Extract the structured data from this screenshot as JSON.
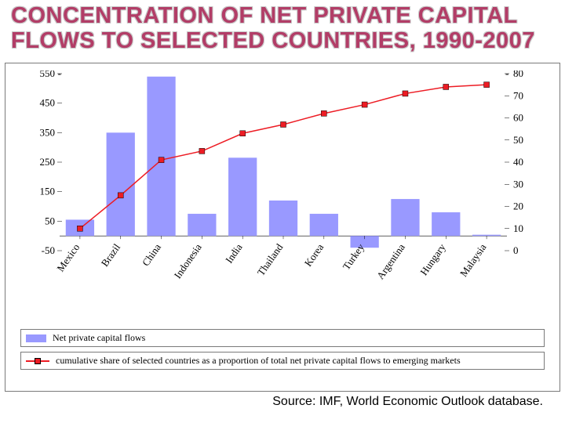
{
  "title": "CONCENTRATION OF NET PRIVATE CAPITAL FLOWS TO SELECTED COUNTRIES, 1990-2007",
  "source": "Source: IMF, World Economic Outlook database.",
  "chart": {
    "type": "bar+line",
    "categories": [
      "Mexico",
      "Brazil",
      "China",
      "Indonesia",
      "India",
      "Thailand",
      "Korea",
      "Turkey",
      "Argentina",
      "Hungary",
      "Malaysia"
    ],
    "bar_values": [
      55,
      350,
      540,
      75,
      265,
      120,
      75,
      -40,
      125,
      80,
      4
    ],
    "line_values": [
      10,
      25,
      41,
      45,
      53,
      57,
      62,
      66,
      71,
      74,
      75
    ],
    "bar_color": "#9999ff",
    "line_color": "#ed1c24",
    "line_width": 1.5,
    "marker_style": "square",
    "marker_size": 7,
    "marker_color": "#ed1c24",
    "bar_width": 0.7,
    "left_axis": {
      "min": -50,
      "max": 550,
      "ticks": [
        -50,
        50,
        150,
        250,
        350,
        450,
        550
      ]
    },
    "right_axis": {
      "min": 0,
      "max": 80,
      "ticks": [
        0,
        10,
        20,
        30,
        40,
        50,
        60,
        70,
        80
      ]
    },
    "background_color": "#ffffff",
    "axis_color": "#000000",
    "xlabel_fontsize": 13,
    "ylabel_fontsize": 13,
    "xlabel_rotation": -55
  },
  "legend": {
    "bar_label": "Net private capital flows",
    "line_label": "cumulative share of selected countries as a proportion of total net private capital flows to emerging markets"
  }
}
